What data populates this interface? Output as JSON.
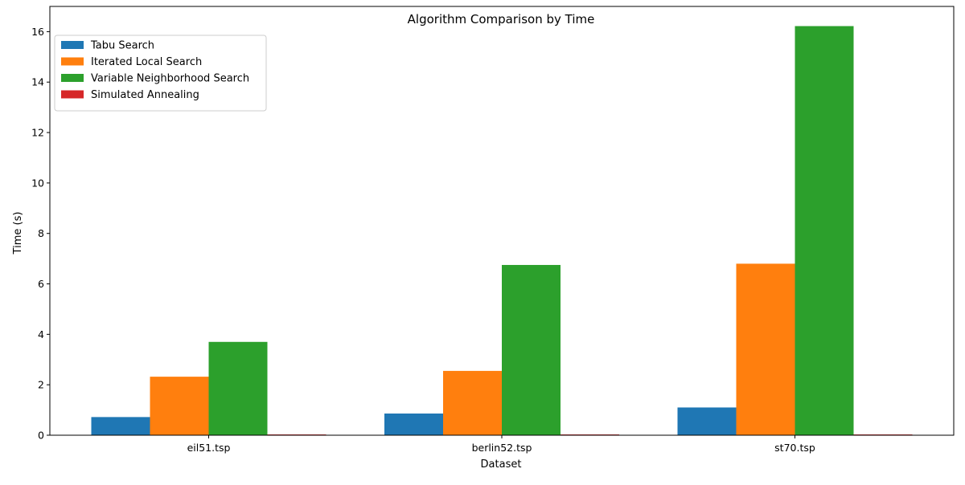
{
  "chart_data": {
    "type": "bar",
    "title": "Algorithm Comparison by Time",
    "xlabel": "Dataset",
    "ylabel": "Time (s)",
    "categories": [
      "eil51.tsp",
      "berlin52.tsp",
      "st70.tsp"
    ],
    "ylim": [
      0,
      17
    ],
    "yticks": [
      0,
      2,
      4,
      6,
      8,
      10,
      12,
      14,
      16
    ],
    "grid": false,
    "legend_position": "top-left",
    "series": [
      {
        "name": "Tabu Search",
        "color": "#1f77b4",
        "values": [
          0.72,
          0.86,
          1.1
        ]
      },
      {
        "name": "Iterated Local Search",
        "color": "#ff7f0e",
        "values": [
          2.32,
          2.55,
          6.8
        ]
      },
      {
        "name": "Variable Neighborhood Search",
        "color": "#2ca02c",
        "values": [
          3.7,
          6.75,
          16.22
        ]
      },
      {
        "name": "Simulated Annealing",
        "color": "#d62728",
        "values": [
          0.03,
          0.03,
          0.03
        ]
      }
    ]
  }
}
